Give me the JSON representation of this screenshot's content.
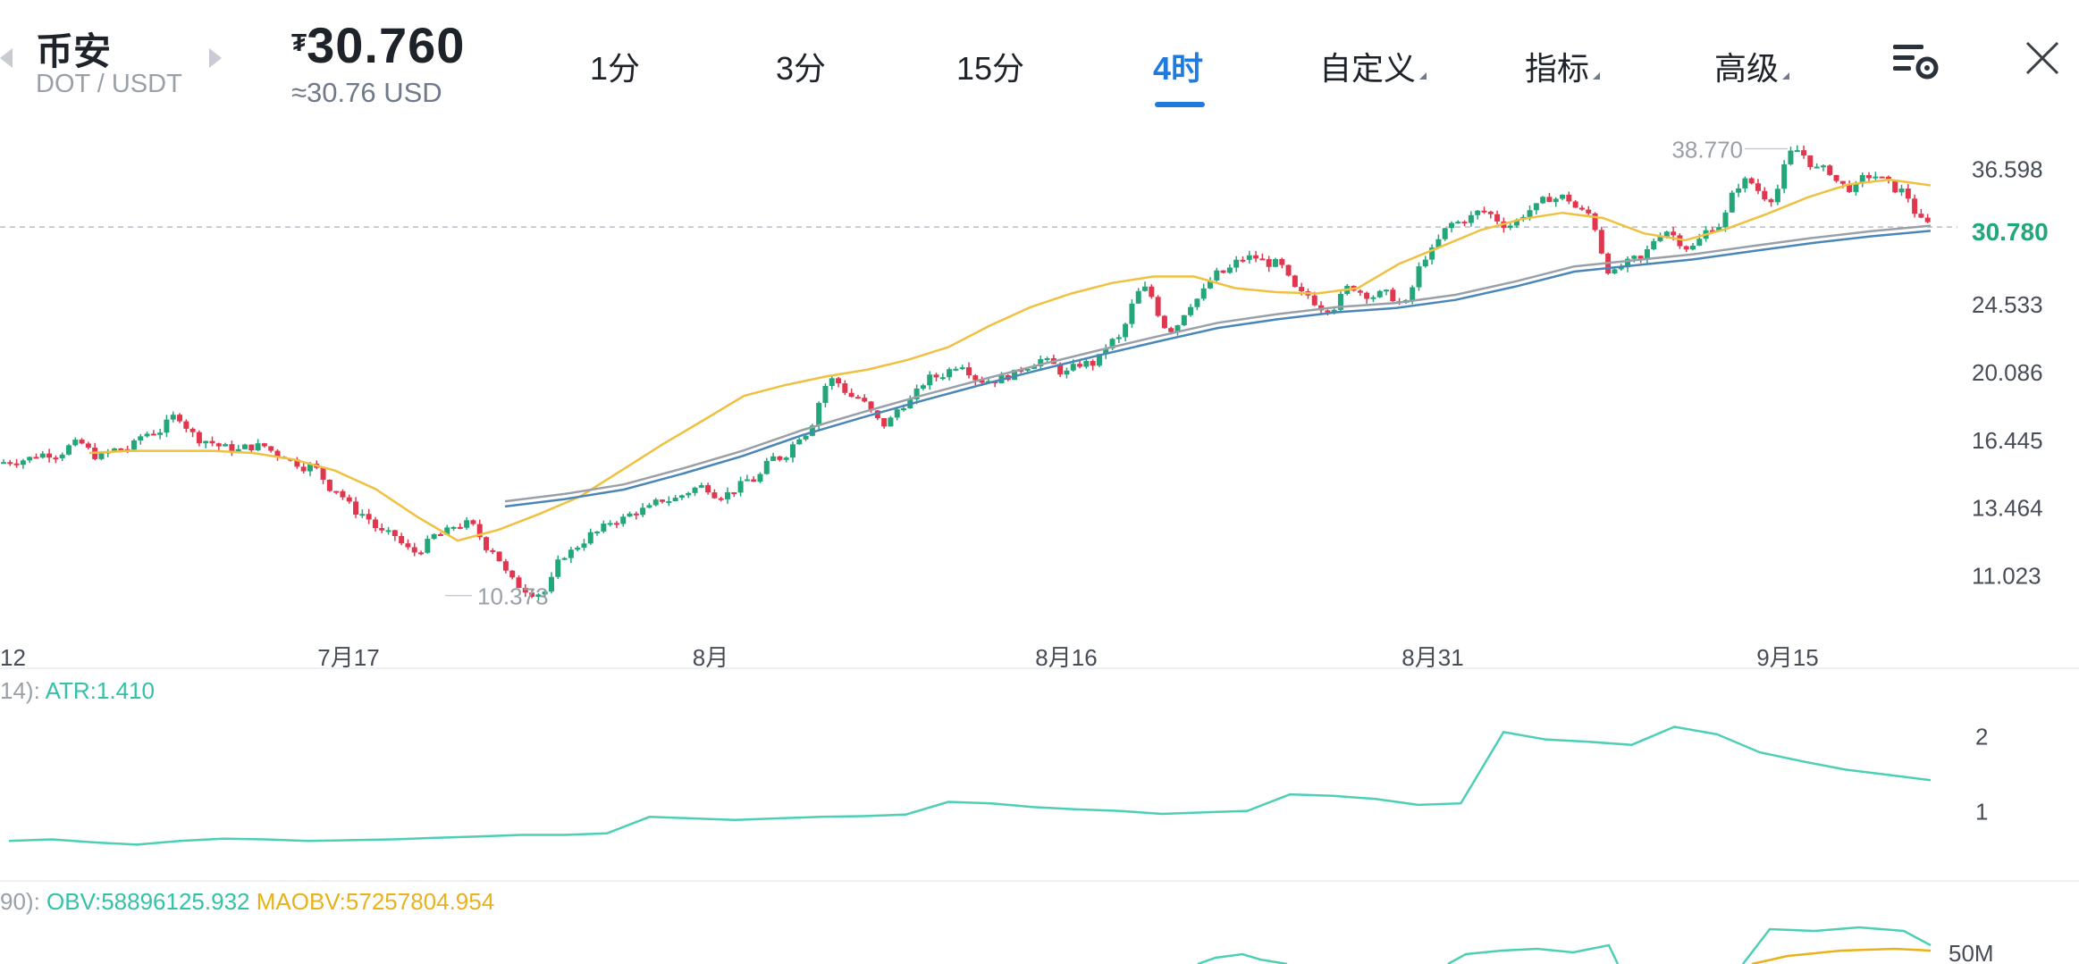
{
  "header": {
    "exchange": "币安",
    "pair": "DOT / USDT",
    "currency_symbol": "₮",
    "price": "30.760",
    "usd_equiv": "≈30.76 USD"
  },
  "tabs": [
    {
      "label": "1分",
      "active": false
    },
    {
      "label": "3分",
      "active": false
    },
    {
      "label": "15分",
      "active": false
    },
    {
      "label": "4时",
      "active": true
    },
    {
      "label": "自定义",
      "active": false
    },
    {
      "label": "指标",
      "active": false
    },
    {
      "label": "高级",
      "active": false
    }
  ],
  "icons": {
    "settings": "chart-settings-icon",
    "close": "close-icon",
    "prev": "chevron-left-icon",
    "next": "chevron-right-icon"
  },
  "colors": {
    "accent": "#1f7ae0",
    "up": "#23a67a",
    "down": "#e0374f",
    "ma_short": "#f0c040",
    "ma_long": "#4a86b8",
    "atr": "#4ccfb5",
    "maobv": "#e8b21c"
  },
  "chart_data": {
    "type": "candlestick",
    "symbol": "DOT/USDT",
    "interval": "4时",
    "y_ticks": [
      "36.598",
      "24.533",
      "20.086",
      "16.445",
      "13.464",
      "11.023"
    ],
    "y_scale": "log",
    "y_range": [
      9.5,
      40.5
    ],
    "x_ticks": [
      "12",
      "7月17",
      "8月",
      "8月16",
      "8月31",
      "9月15"
    ],
    "current_price_label": "30.780",
    "high_label": "38.770",
    "low_label": "10.373",
    "close_series": [
      15.5,
      15.8,
      16.2,
      15.6,
      16.0,
      16.8,
      17.6,
      16.4,
      16.0,
      16.1,
      15.7,
      15.2,
      14.2,
      13.2,
      12.4,
      11.8,
      12.4,
      12.8,
      11.9,
      10.7,
      10.5,
      11.8,
      12.5,
      13.0,
      13.4,
      13.8,
      14.3,
      14.0,
      14.6,
      15.6,
      16.8,
      19.6,
      18.6,
      17.2,
      18.4,
      19.8,
      20.6,
      19.6,
      19.9,
      20.8,
      20.0,
      20.6,
      22.1,
      25.6,
      22.8,
      24.9,
      26.9,
      28.1,
      27.6,
      25.2,
      24.3,
      25.8,
      25.2,
      24.5,
      28.6,
      31.2,
      32.2,
      31.0,
      32.6,
      33.6,
      32.0,
      26.8,
      27.9,
      30.5,
      29.0,
      31.0,
      35.2,
      33.6,
      38.6,
      36.4,
      34.6,
      35.8,
      34.2,
      31.0
    ],
    "ma_short": [
      15.8,
      15.9,
      15.9,
      15.9,
      15.8,
      15.5,
      15.0,
      14.2,
      13.1,
      12.2,
      12.6,
      13.2,
      13.9,
      15.0,
      16.2,
      17.4,
      18.7,
      19.3,
      19.8,
      20.2,
      20.8,
      21.6,
      23.0,
      24.3,
      25.3,
      26.1,
      26.6,
      26.6,
      25.7,
      25.4,
      25.3,
      25.7,
      27.6,
      29.0,
      30.5,
      31.5,
      32.1,
      31.6,
      30.2,
      29.6,
      30.6,
      32.0,
      33.6,
      34.9,
      35.4,
      34.8
    ],
    "ma_long": [
      13.7,
      14.0,
      14.4,
      15.1,
      15.9,
      16.9,
      17.8,
      18.7,
      19.6,
      20.5,
      21.4,
      22.3,
      23.2,
      23.8,
      24.3,
      24.6,
      25.2,
      26.2,
      27.4,
      27.9,
      28.4,
      29.1,
      29.8,
      30.4,
      30.9
    ],
    "indicators": {
      "atr": {
        "label": "ATR:1.410",
        "period_prefix": "14):",
        "value": 1.41,
        "y_ticks": [
          "2",
          "1"
        ],
        "series": [
          0.6,
          0.62,
          0.58,
          0.55,
          0.6,
          0.63,
          0.62,
          0.6,
          0.61,
          0.62,
          0.64,
          0.66,
          0.68,
          0.68,
          0.7,
          0.92,
          0.9,
          0.88,
          0.9,
          0.92,
          0.93,
          0.95,
          1.12,
          1.1,
          1.05,
          1.02,
          1.0,
          0.96,
          0.98,
          1.0,
          1.22,
          1.2,
          1.16,
          1.08,
          1.1,
          2.05,
          1.95,
          1.92,
          1.88,
          2.12,
          2.02,
          1.78,
          1.66,
          1.55,
          1.48,
          1.41
        ]
      },
      "obv": {
        "prefix": "90):",
        "obv_label": "OBV:58896125.932",
        "maobv_label": "MAOBV:57257804.954",
        "y_ticks": [
          "50M"
        ]
      }
    }
  }
}
